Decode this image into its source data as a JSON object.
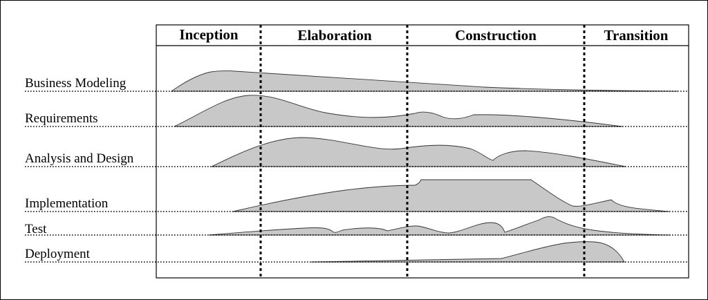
{
  "phases": [
    {
      "label": "Inception"
    },
    {
      "label": "Elaboration"
    },
    {
      "label": "Construction"
    },
    {
      "label": "Transition"
    }
  ],
  "disciplines": [
    {
      "label": "Business Modeling"
    },
    {
      "label": "Requirements"
    },
    {
      "label": "Analysis and Design"
    },
    {
      "label": "Implementation"
    },
    {
      "label": "Test"
    },
    {
      "label": "Deployment"
    }
  ],
  "colors": {
    "hump_fill": "#c8c8c8",
    "hump_stroke": "#333333",
    "line": "#000000",
    "background": "#ffffff"
  }
}
